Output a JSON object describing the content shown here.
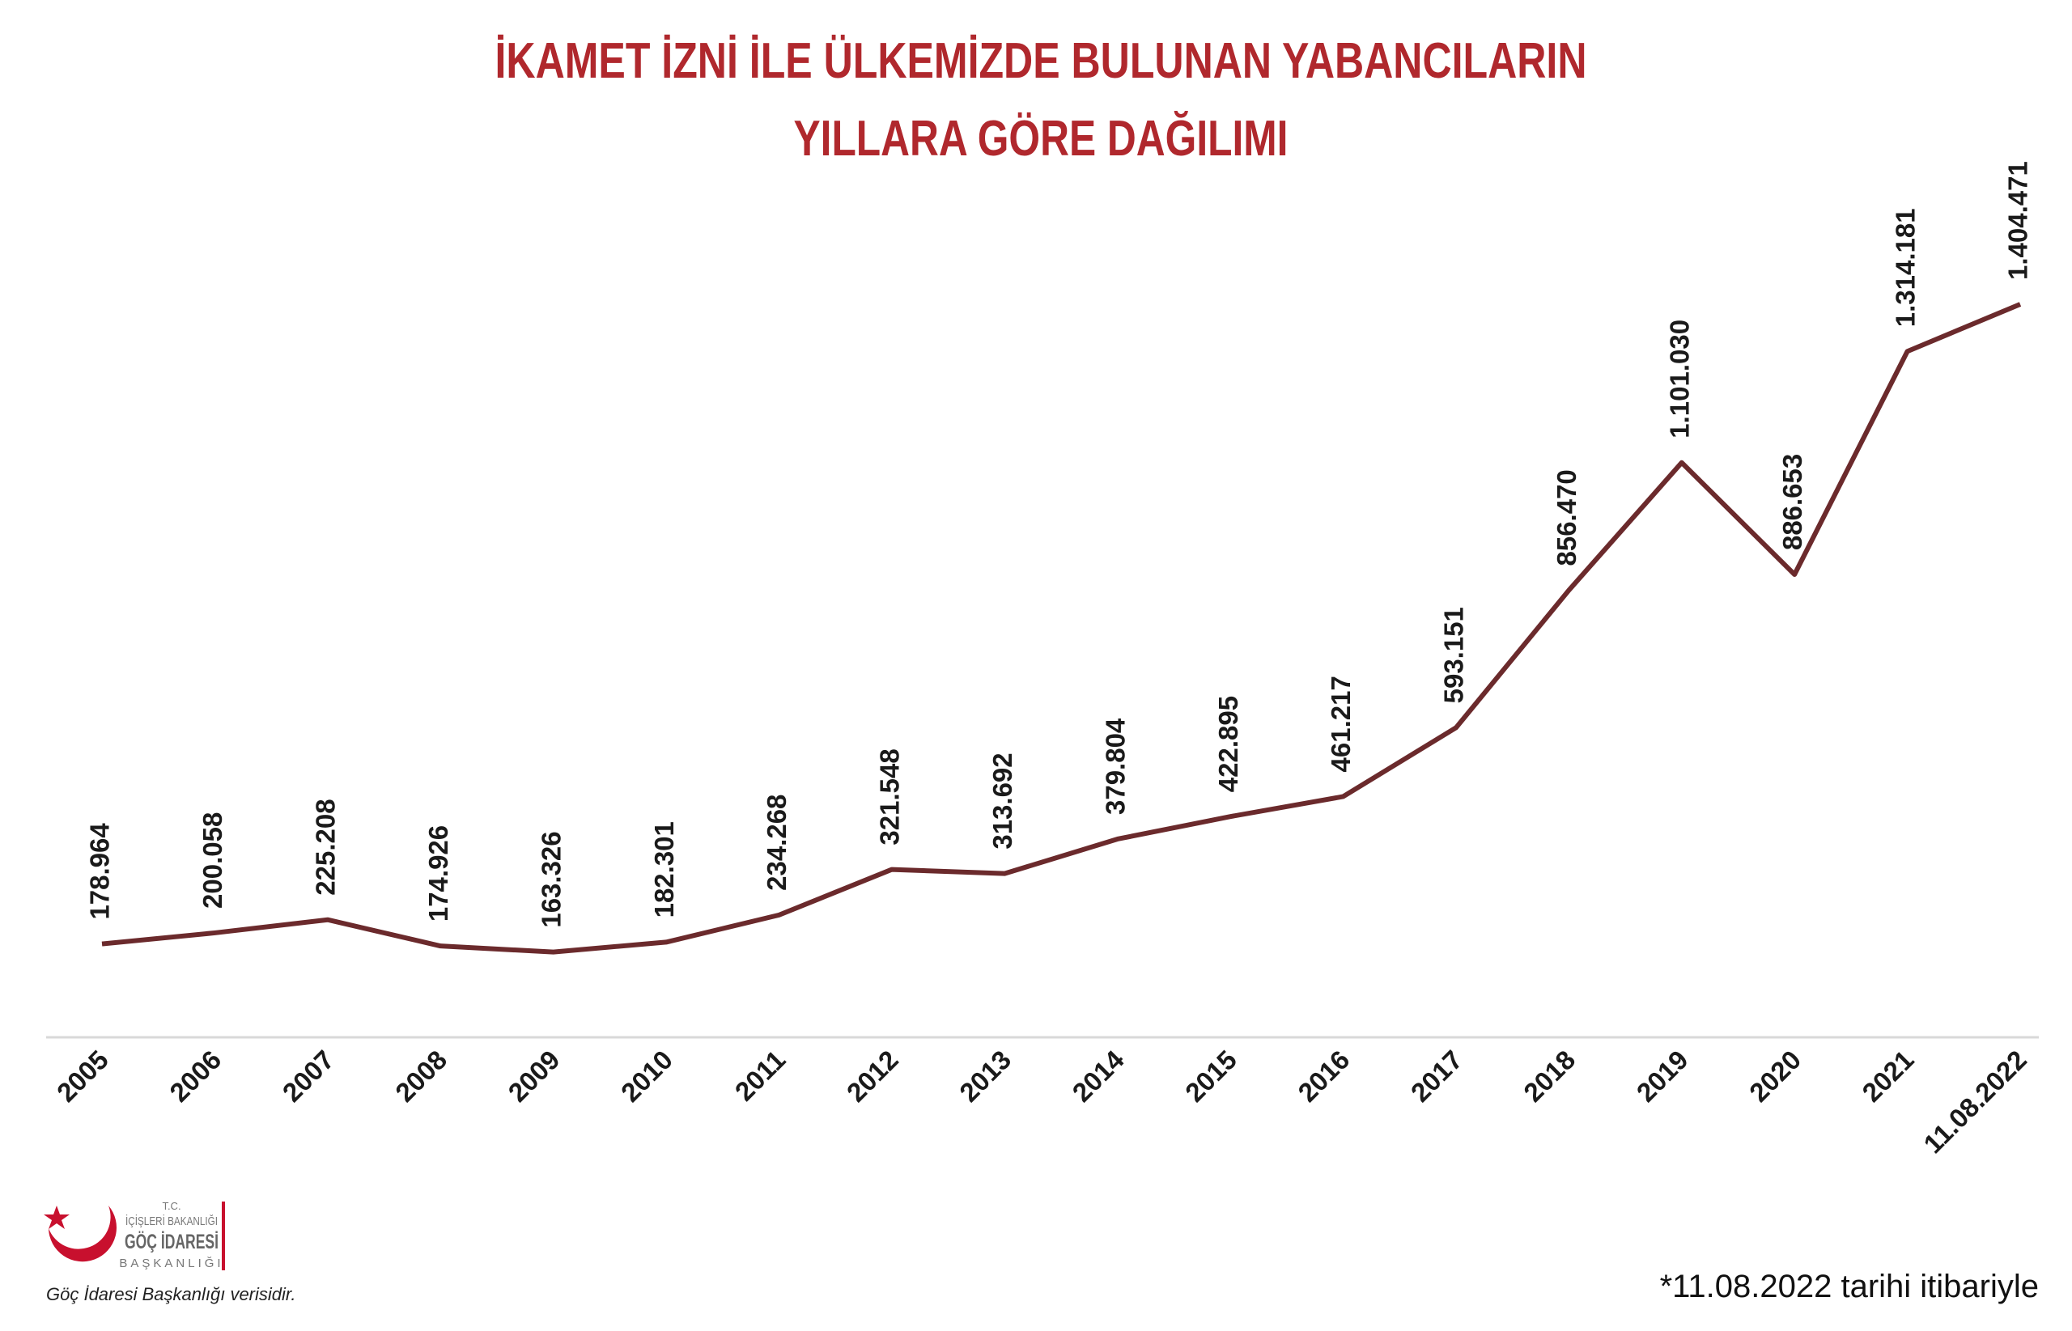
{
  "chart_data": {
    "type": "line",
    "title": [
      "İKAMET İZNİ İLE ÜLKEMİZDE BULUNAN YABANCILARIN",
      "YILLARA GÖRE DAĞILIMI"
    ],
    "categories": [
      "2005",
      "2006",
      "2007",
      "2008",
      "2009",
      "2010",
      "2011",
      "2012",
      "2013",
      "2014",
      "2015",
      "2016",
      "2017",
      "2018",
      "2019",
      "2020",
      "2021",
      "11.08.2022"
    ],
    "series": [
      {
        "color": "#6b2a2c",
        "values": [
          178964,
          200058,
          225208,
          174926,
          163326,
          182301,
          234268,
          321548,
          313692,
          379804,
          422895,
          461217,
          593151,
          856470,
          1101030,
          886653,
          1314181,
          1404471
        ],
        "value_labels": [
          "178.964",
          "200.058",
          "225.208",
          "174.926",
          "163.326",
          "182.301",
          "234.268",
          "321.548",
          "313.692",
          "379.804",
          "422.895",
          "461.217",
          "593.151",
          "856.470",
          "1.101.030",
          "886.653",
          "1.314.181",
          "1.404.471"
        ]
      }
    ]
  },
  "logo": {
    "line1": "T.C.",
    "line2": "İÇİŞLERİ BAKANLIĞI",
    "line3": "GÖÇ İDARESİ",
    "line4": "BAŞKANLIĞI"
  },
  "source": "Göç İdaresi Başkanlığı verisidir.",
  "footnote": "*11.08.2022 tarihi itibariyle"
}
